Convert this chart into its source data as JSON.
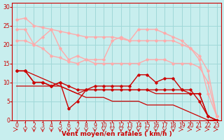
{
  "background_color": "#c8eeee",
  "grid_color": "#a0d8d8",
  "xlabel": "Vent moyen/en rafales ( km/h )",
  "xlabel_color": "#cc0000",
  "xlabel_fontsize": 6.5,
  "tick_color": "#cc0000",
  "tick_fontsize": 5.5,
  "xlim": [
    -0.5,
    23.5
  ],
  "ylim": [
    0,
    31
  ],
  "yticks": [
    0,
    5,
    10,
    15,
    20,
    25,
    30
  ],
  "xticks": [
    0,
    1,
    2,
    3,
    4,
    5,
    6,
    7,
    8,
    9,
    10,
    11,
    12,
    13,
    14,
    15,
    16,
    17,
    18,
    19,
    20,
    21,
    22,
    23
  ],
  "lines": [
    {
      "x": [
        0,
        1,
        2,
        3,
        4,
        5,
        6,
        7,
        8,
        9,
        10,
        11,
        12,
        13,
        14,
        15,
        16,
        17,
        18,
        19,
        20,
        21,
        22,
        23
      ],
      "y": [
        26.5,
        27,
        25,
        24.5,
        24,
        23.5,
        23,
        22.5,
        22,
        22,
        22,
        22,
        21.5,
        21,
        21,
        21,
        21,
        21,
        21,
        20,
        19,
        17,
        13,
        1
      ],
      "color": "#ffaaaa",
      "lw": 1.0,
      "marker": "D",
      "ms": 1.8,
      "zorder": 3
    },
    {
      "x": [
        0,
        1,
        2,
        3,
        4,
        5,
        6,
        7,
        8,
        9,
        10,
        11,
        12,
        13,
        14,
        15,
        16,
        17,
        18,
        19,
        20,
        21,
        22,
        23
      ],
      "y": [
        24,
        24,
        20,
        22,
        24,
        19,
        16,
        17,
        16,
        16,
        16,
        21,
        22,
        21,
        24,
        24,
        24,
        23,
        22,
        21,
        19,
        16,
        7,
        1
      ],
      "color": "#ffaaaa",
      "lw": 1.0,
      "marker": "D",
      "ms": 1.8,
      "zorder": 3
    },
    {
      "x": [
        0,
        1,
        2,
        3,
        4,
        5,
        6,
        7,
        8,
        9,
        10,
        11,
        12,
        13,
        14,
        15,
        16,
        17,
        18,
        19,
        20,
        21,
        22,
        23
      ],
      "y": [
        21,
        21,
        20,
        19,
        17,
        16.5,
        15.5,
        15,
        16,
        15,
        15,
        15,
        15,
        15,
        15,
        16,
        16,
        16,
        15,
        15,
        15,
        14,
        10,
        1
      ],
      "color": "#ffaaaa",
      "lw": 1.0,
      "marker": "D",
      "ms": 1.8,
      "zorder": 3
    },
    {
      "x": [
        0,
        1,
        2,
        3,
        4,
        5,
        6,
        7,
        8,
        9,
        10,
        11,
        12,
        13,
        14,
        15,
        16,
        17,
        18,
        19,
        20,
        21,
        22,
        23
      ],
      "y": [
        13,
        13,
        12,
        11,
        10,
        9,
        8,
        7,
        6,
        6,
        6,
        5,
        5,
        5,
        5,
        4,
        4,
        4,
        4,
        3,
        2,
        1,
        0,
        0
      ],
      "color": "#cc0000",
      "lw": 0.9,
      "marker": null,
      "ms": 0,
      "zorder": 2
    },
    {
      "x": [
        0,
        1,
        2,
        3,
        4,
        5,
        6,
        7,
        8,
        9,
        10,
        11,
        12,
        13,
        14,
        15,
        16,
        17,
        18,
        19,
        20,
        21,
        22,
        23
      ],
      "y": [
        13,
        13,
        10,
        10,
        9,
        10,
        3,
        5,
        8,
        9,
        9,
        9,
        9,
        9,
        12,
        12,
        10,
        11,
        11,
        8,
        8,
        5,
        1,
        0
      ],
      "color": "#cc0000",
      "lw": 1.0,
      "marker": "D",
      "ms": 1.8,
      "zorder": 4
    },
    {
      "x": [
        0,
        1,
        2,
        3,
        4,
        5,
        6,
        7,
        8,
        9,
        10,
        11,
        12,
        13,
        14,
        15,
        16,
        17,
        18,
        19,
        20,
        21,
        22,
        23
      ],
      "y": [
        13,
        13,
        10,
        10,
        9,
        10,
        9,
        8,
        8,
        8,
        8,
        8,
        8,
        8,
        8,
        8,
        8,
        8,
        8,
        8,
        7,
        7,
        1,
        0
      ],
      "color": "#cc0000",
      "lw": 1.0,
      "marker": "D",
      "ms": 1.8,
      "zorder": 4
    },
    {
      "x": [
        0,
        1,
        2,
        3,
        4,
        5,
        6,
        7,
        8,
        9,
        10,
        11,
        12,
        13,
        14,
        15,
        16,
        17,
        18,
        19,
        20,
        21,
        22,
        23
      ],
      "y": [
        9,
        9,
        9,
        9,
        9,
        9,
        8,
        7,
        8,
        8,
        8,
        8,
        8,
        8,
        8,
        8,
        7,
        7,
        7,
        7,
        7,
        7,
        1,
        0
      ],
      "color": "#cc0000",
      "lw": 0.9,
      "marker": null,
      "ms": 0,
      "zorder": 2
    }
  ],
  "wind_symbols": [
    0,
    1,
    2,
    3,
    4,
    5,
    6,
    7,
    8,
    9,
    10,
    11,
    12,
    13,
    14,
    15,
    16,
    17,
    18,
    19,
    20,
    21,
    22,
    23
  ],
  "wind_color": "#cc0000"
}
